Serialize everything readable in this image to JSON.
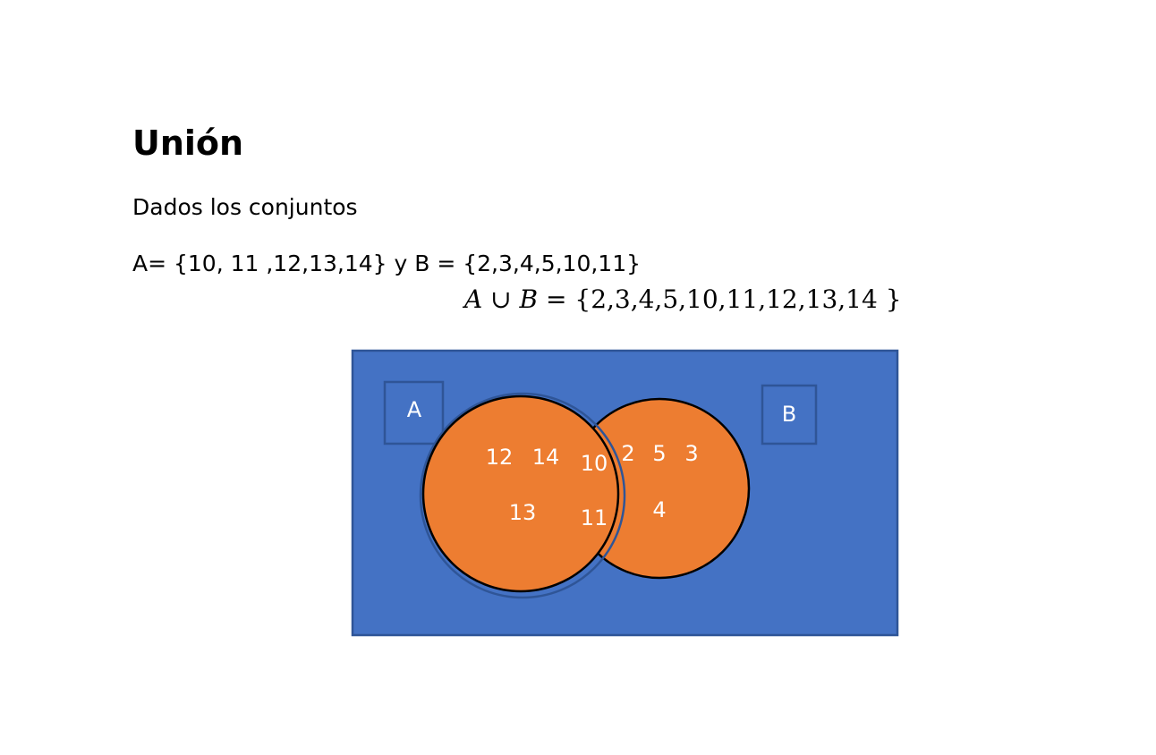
{
  "heading": "Unión",
  "intro": "Dados los conjuntos",
  "definition": "A= {10, 11 ,12,13,14} y B = {2,3,4,5,10,11}",
  "union": {
    "a": "A",
    "op": "∪",
    "b": "B",
    "eq": "=",
    "result": "{2,3,4,5,10,11,12,13,14 }"
  },
  "diagram": {
    "set_a_label": "A",
    "set_b_label": "B",
    "only_a": [
      "12",
      "14",
      "13"
    ],
    "intersection": [
      "10",
      "11"
    ],
    "only_b": [
      "2",
      "5",
      "3",
      "4"
    ]
  },
  "colors": {
    "universe": "#4472C4",
    "universe_border": "#2F5597",
    "circle_fill": "#ED7D31",
    "circle_stroke": "#000000",
    "text": "#FFFFFF"
  }
}
